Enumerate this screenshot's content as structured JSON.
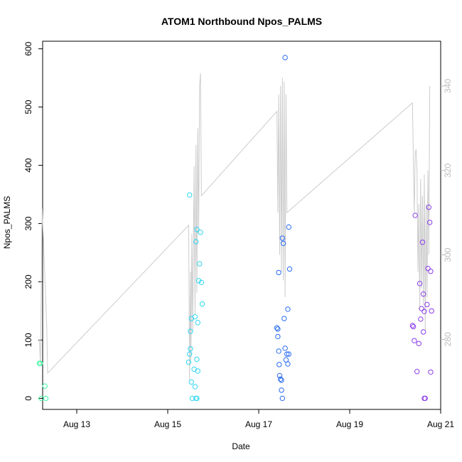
{
  "chart_data": {
    "type": "scatter",
    "title": "ATOM1 Northbound Npos_PALMS",
    "xlabel": "Date",
    "ylabel": "Npos_PALMS",
    "x_ticks": [
      "Aug 13",
      "Aug 15",
      "Aug 17",
      "Aug 19",
      "Aug 21"
    ],
    "x_tick_values": [
      13,
      15,
      17,
      19,
      21
    ],
    "xlim": [
      12.25,
      21.0
    ],
    "y_ticks": [
      0,
      100,
      200,
      300,
      400,
      500,
      600
    ],
    "ylim": [
      -19,
      613
    ],
    "y2_ticks": [
      280,
      300,
      320,
      340
    ],
    "y2_tick_values": [
      280,
      300,
      320,
      340
    ],
    "y2lim": [
      263.4,
      350.6
    ],
    "y2_color": "#bdbdbd",
    "line_series": {
      "color": "#cccccc",
      "points": [
        [
          12.18,
          280
        ],
        [
          12.2,
          274
        ],
        [
          12.24,
          311
        ],
        [
          12.34,
          283
        ],
        [
          12.36,
          272
        ],
        [
          15.46,
          307
        ],
        [
          15.48,
          270
        ],
        [
          15.5,
          296
        ],
        [
          15.51,
          275
        ],
        [
          15.53,
          305
        ],
        [
          15.55,
          282
        ],
        [
          15.58,
          321
        ],
        [
          15.6,
          286
        ],
        [
          15.62,
          326
        ],
        [
          15.64,
          291
        ],
        [
          15.66,
          330
        ],
        [
          15.68,
          305
        ],
        [
          15.7,
          340
        ],
        [
          15.72,
          343
        ],
        [
          15.74,
          314
        ],
        [
          17.4,
          334
        ],
        [
          17.42,
          310
        ],
        [
          17.44,
          338
        ],
        [
          17.46,
          300
        ],
        [
          17.48,
          340
        ],
        [
          17.5,
          296
        ],
        [
          17.52,
          342
        ],
        [
          17.54,
          294
        ],
        [
          17.56,
          341
        ],
        [
          17.58,
          290
        ],
        [
          17.6,
          338
        ],
        [
          17.62,
          310
        ],
        [
          20.38,
          336
        ],
        [
          20.4,
          322
        ],
        [
          20.42,
          310
        ],
        [
          20.44,
          324
        ],
        [
          20.46,
          325
        ],
        [
          20.48,
          320
        ],
        [
          20.5,
          296
        ],
        [
          20.52,
          312
        ],
        [
          20.54,
          287
        ],
        [
          20.56,
          318
        ],
        [
          20.58,
          292
        ],
        [
          20.6,
          314
        ],
        [
          20.62,
          288
        ],
        [
          20.64,
          319
        ],
        [
          20.66,
          282
        ],
        [
          20.68,
          312
        ],
        [
          20.7,
          290
        ],
        [
          20.72,
          320
        ],
        [
          20.74,
          300
        ],
        [
          20.76,
          340
        ]
      ]
    },
    "series": [
      {
        "color": "#3DF5A0",
        "points": [
          [
            12.18,
            60
          ],
          [
            12.2,
            60
          ],
          [
            12.22,
            0
          ],
          [
            12.3,
            21
          ],
          [
            12.32,
            0
          ]
        ]
      },
      {
        "color": "#2ED6F2",
        "points": [
          [
            15.46,
            62
          ],
          [
            15.48,
            76
          ],
          [
            15.5,
            85
          ],
          [
            15.52,
            28
          ],
          [
            15.54,
            0
          ],
          [
            15.5,
            115
          ],
          [
            15.52,
            137
          ],
          [
            15.48,
            349
          ],
          [
            15.58,
            50
          ],
          [
            15.6,
            20
          ],
          [
            15.62,
            0
          ],
          [
            15.64,
            0
          ],
          [
            15.6,
            140
          ],
          [
            15.62,
            269
          ],
          [
            15.64,
            290
          ],
          [
            15.66,
            130
          ],
          [
            15.68,
            202
          ],
          [
            15.7,
            231
          ],
          [
            15.72,
            285
          ],
          [
            15.74,
            199
          ],
          [
            15.76,
            162
          ],
          [
            15.64,
            67
          ],
          [
            15.66,
            47
          ]
        ]
      },
      {
        "color": "#2A6BF2",
        "points": [
          [
            17.4,
            121
          ],
          [
            17.42,
            119
          ],
          [
            17.42,
            106
          ],
          [
            17.44,
            81
          ],
          [
            17.45,
            58
          ],
          [
            17.46,
            39
          ],
          [
            17.48,
            33
          ],
          [
            17.5,
            31
          ],
          [
            17.5,
            14
          ],
          [
            17.52,
            0
          ],
          [
            17.44,
            216
          ],
          [
            17.52,
            275
          ],
          [
            17.54,
            266
          ],
          [
            17.56,
            137
          ],
          [
            17.58,
            86
          ],
          [
            17.6,
            66
          ],
          [
            17.62,
            76
          ],
          [
            17.64,
            59
          ],
          [
            17.66,
            76
          ],
          [
            17.64,
            153
          ],
          [
            17.66,
            294
          ],
          [
            17.68,
            222
          ],
          [
            17.58,
            585
          ]
        ]
      },
      {
        "color": "#8B3CEB",
        "points": [
          [
            20.38,
            125
          ],
          [
            20.4,
            123
          ],
          [
            20.42,
            99
          ],
          [
            20.44,
            314
          ],
          [
            20.48,
            46
          ],
          [
            20.52,
            94
          ],
          [
            20.54,
            197
          ],
          [
            20.56,
            136
          ],
          [
            20.58,
            154
          ],
          [
            20.6,
            268
          ],
          [
            20.62,
            179
          ],
          [
            20.62,
            114
          ],
          [
            20.64,
            149
          ],
          [
            20.64,
            0
          ],
          [
            20.66,
            0
          ],
          [
            20.7,
            161
          ],
          [
            20.72,
            223
          ],
          [
            20.74,
            328
          ],
          [
            20.76,
            302
          ],
          [
            20.78,
            218
          ],
          [
            20.78,
            45
          ],
          [
            20.8,
            150
          ]
        ]
      }
    ]
  }
}
